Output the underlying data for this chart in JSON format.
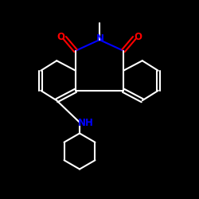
{
  "bg_color": "#000000",
  "bond_color": "#ffffff",
  "N_color": "#0000ff",
  "O_color": "#ff0000",
  "NH_color": "#0000ff",
  "line_width": 1.5,
  "figsize": [
    2.5,
    2.5
  ],
  "dpi": 100,
  "xlim": [
    0,
    10
  ],
  "ylim": [
    0,
    10
  ]
}
